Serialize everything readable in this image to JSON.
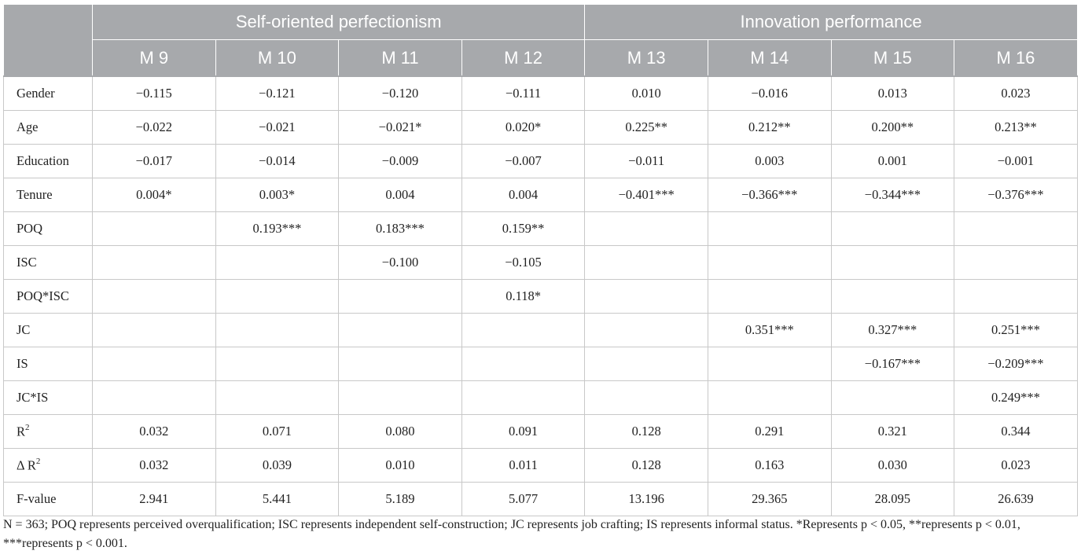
{
  "header": {
    "groups": [
      "",
      "Self-oriented perfectionism",
      "Innovation performance"
    ],
    "models": [
      "M 9",
      "M 10",
      "M 11",
      "M 12",
      "M 13",
      "M 14",
      "M 15",
      "M 16"
    ]
  },
  "rows": [
    {
      "label": "Gender",
      "cells": [
        "−0.115",
        "−0.121",
        "−0.120",
        "−0.111",
        "0.010",
        "−0.016",
        "0.013",
        "0.023"
      ]
    },
    {
      "label": "Age",
      "cells": [
        "−0.022",
        "−0.021",
        "−0.021*",
        "0.020*",
        "0.225**",
        "0.212**",
        "0.200**",
        "0.213**"
      ]
    },
    {
      "label": "Education",
      "cells": [
        "−0.017",
        "−0.014",
        "−0.009",
        "−0.007",
        "−0.011",
        "0.003",
        "0.001",
        "−0.001"
      ]
    },
    {
      "label": "Tenure",
      "cells": [
        "0.004*",
        "0.003*",
        "0.004",
        "0.004",
        "−0.401***",
        "−0.366***",
        "−0.344***",
        "−0.376***"
      ]
    },
    {
      "label": "POQ",
      "cells": [
        "",
        "0.193***",
        "0.183***",
        "0.159**",
        "",
        "",
        "",
        ""
      ]
    },
    {
      "label": "ISC",
      "cells": [
        "",
        "",
        "−0.100",
        "−0.105",
        "",
        "",
        "",
        ""
      ]
    },
    {
      "label": "POQ*ISC",
      "cells": [
        "",
        "",
        "",
        "0.118*",
        "",
        "",
        "",
        ""
      ]
    },
    {
      "label": "JC",
      "cells": [
        "",
        "",
        "",
        "",
        "",
        "0.351***",
        "0.327***",
        "0.251***"
      ]
    },
    {
      "label": "IS",
      "cells": [
        "",
        "",
        "",
        "",
        "",
        "",
        "−0.167***",
        "−0.209***"
      ]
    },
    {
      "label": "JC*IS",
      "cells": [
        "",
        "",
        "",
        "",
        "",
        "",
        "",
        "0.249***"
      ]
    },
    {
      "label": "R",
      "sup": "2",
      "cells": [
        "0.032",
        "0.071",
        "0.080",
        "0.091",
        "0.128",
        "0.291",
        "0.321",
        "0.344"
      ]
    },
    {
      "label": "Δ R",
      "sup": "2",
      "cells": [
        "0.032",
        "0.039",
        "0.010",
        "0.011",
        "0.128",
        "0.163",
        "0.030",
        "0.023"
      ]
    },
    {
      "label": "F-value",
      "cells": [
        "2.941",
        "5.441",
        "5.189",
        "5.077",
        "13.196",
        "29.365",
        "28.095",
        "26.639"
      ]
    }
  ],
  "note": "N = 363; POQ represents perceived overqualification; ISC represents independent self-construction; JC represents job crafting; IS represents informal status. *Represents p < 0.05, **represents p < 0.01, ***represents p < 0.001."
}
